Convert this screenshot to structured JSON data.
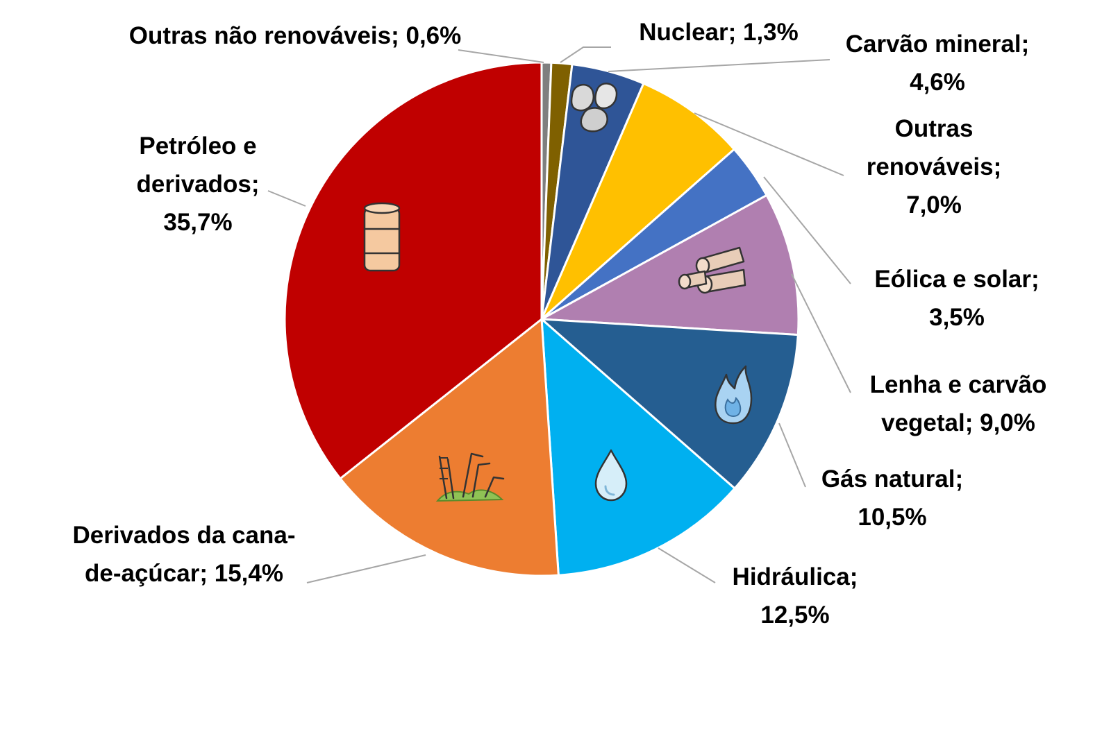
{
  "chart_data": {
    "type": "pie",
    "start_angle_deg": 0,
    "direction": "clockwise",
    "slices": [
      {
        "label": "Outras não renováveis",
        "value": 0.6,
        "value_label": "0,6%",
        "color": "#7f7f7f",
        "label_lines": [
          "Outras não renováveis; 0,6%"
        ],
        "icon": ""
      },
      {
        "label": "Nuclear",
        "value": 1.3,
        "value_label": "1,3%",
        "color": "#7f6000",
        "label_lines": [
          "Nuclear; 1,3%"
        ],
        "icon": ""
      },
      {
        "label": "Carvão mineral",
        "value": 4.6,
        "value_label": "4,6%",
        "color": "#2f5597",
        "label_lines": [
          "Carvão mineral;",
          "4,6%"
        ],
        "icon": "coal-icon"
      },
      {
        "label": "Outras renováveis",
        "value": 7.0,
        "value_label": "7,0%",
        "color": "#ffc000",
        "label_lines": [
          "Outras",
          "renováveis;",
          "7,0%"
        ],
        "icon": ""
      },
      {
        "label": "Eólica e solar",
        "value": 3.5,
        "value_label": "3,5%",
        "color": "#4472c4",
        "label_lines": [
          "Eólica e solar;",
          "3,5%"
        ],
        "icon": ""
      },
      {
        "label": "Lenha e carvão vegetal",
        "value": 9.0,
        "value_label": "9,0%",
        "color": "#b07fb0",
        "label_lines": [
          "Lenha e carvão",
          "vegetal; 9,0%"
        ],
        "icon": "firewood-icon"
      },
      {
        "label": "Gás natural",
        "value": 10.5,
        "value_label": "10,5%",
        "color": "#255e91",
        "label_lines": [
          "Gás natural;",
          "10,5%"
        ],
        "icon": "flame-icon"
      },
      {
        "label": "Hidráulica",
        "value": 12.5,
        "value_label": "12,5%",
        "color": "#00b0f0",
        "label_lines": [
          "Hidráulica;",
          "12,5%"
        ],
        "icon": "water-drop-icon"
      },
      {
        "label": "Derivados da cana-de-açúcar",
        "value": 15.4,
        "value_label": "15,4%",
        "color": "#ed7d31",
        "label_lines": [
          "Derivados da cana-",
          "de-açúcar; 15,4%"
        ],
        "icon": "sugarcane-icon"
      },
      {
        "label": "Petróleo e derivados",
        "value": 35.7,
        "value_label": "35,7%",
        "color": "#c00000",
        "label_lines": [
          "Petróleo e",
          "derivados;",
          "35,7%"
        ],
        "icon": "oil-barrel-icon"
      }
    ]
  }
}
